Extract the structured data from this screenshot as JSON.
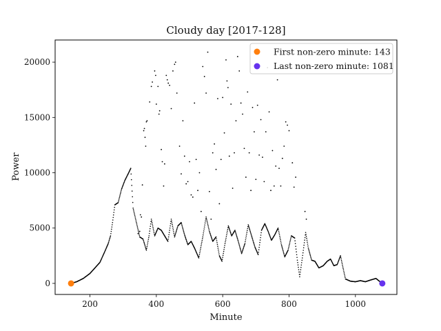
{
  "chart_data": {
    "type": "scatter",
    "title": "Cloudy day [2017-128]",
    "xlabel": "Minute",
    "ylabel": "Power",
    "xlim": [
      95,
      1125
    ],
    "ylim": [
      -1000,
      22000
    ],
    "xticks": [
      200,
      400,
      600,
      800,
      1000
    ],
    "yticks": [
      0,
      5000,
      10000,
      15000,
      20000
    ],
    "grid": false,
    "legend_position": "top-right",
    "series": [
      {
        "name": "power",
        "color": "#000000",
        "profile": [
          [
            143,
            0
          ],
          [
            160,
            150
          ],
          [
            180,
            450
          ],
          [
            200,
            900
          ],
          [
            215,
            1400
          ],
          [
            230,
            1900
          ],
          [
            245,
            2900
          ],
          [
            255,
            3600
          ],
          [
            262,
            4300
          ],
          [
            268,
            5500
          ],
          [
            275,
            7100
          ],
          [
            285,
            7300
          ],
          [
            295,
            8500
          ],
          [
            305,
            9300
          ],
          [
            315,
            9900
          ],
          [
            323,
            10400
          ],
          [
            330,
            6800
          ],
          [
            340,
            5500
          ],
          [
            350,
            4200
          ],
          [
            360,
            4000
          ],
          [
            370,
            3000
          ],
          [
            378,
            4300
          ],
          [
            385,
            5800
          ],
          [
            395,
            4300
          ],
          [
            405,
            5000
          ],
          [
            415,
            4800
          ],
          [
            425,
            4300
          ],
          [
            435,
            3800
          ],
          [
            445,
            5800
          ],
          [
            455,
            4200
          ],
          [
            465,
            5200
          ],
          [
            475,
            5500
          ],
          [
            485,
            4400
          ],
          [
            495,
            3500
          ],
          [
            505,
            3800
          ],
          [
            515,
            3200
          ],
          [
            528,
            2300
          ],
          [
            540,
            4200
          ],
          [
            550,
            6000
          ],
          [
            560,
            4700
          ],
          [
            570,
            3800
          ],
          [
            580,
            4200
          ],
          [
            590,
            2500
          ],
          [
            598,
            2000
          ],
          [
            607,
            3600
          ],
          [
            617,
            5200
          ],
          [
            627,
            4300
          ],
          [
            637,
            4800
          ],
          [
            647,
            3800
          ],
          [
            657,
            2700
          ],
          [
            667,
            3600
          ],
          [
            677,
            5300
          ],
          [
            687,
            4300
          ],
          [
            697,
            3300
          ],
          [
            707,
            2600
          ],
          [
            717,
            4800
          ],
          [
            727,
            5400
          ],
          [
            737,
            4700
          ],
          [
            747,
            3900
          ],
          [
            757,
            4400
          ],
          [
            767,
            5000
          ],
          [
            777,
            3500
          ],
          [
            787,
            2400
          ],
          [
            797,
            3000
          ],
          [
            807,
            4300
          ],
          [
            817,
            4100
          ],
          [
            825,
            2100
          ],
          [
            832,
            600
          ],
          [
            840,
            2300
          ],
          [
            850,
            4600
          ],
          [
            858,
            3200
          ],
          [
            868,
            2100
          ],
          [
            878,
            2000
          ],
          [
            890,
            1400
          ],
          [
            903,
            1600
          ],
          [
            915,
            2000
          ],
          [
            925,
            2200
          ],
          [
            935,
            1600
          ],
          [
            945,
            1700
          ],
          [
            955,
            2500
          ],
          [
            962,
            1500
          ],
          [
            970,
            400
          ],
          [
            985,
            200
          ],
          [
            1000,
            150
          ],
          [
            1015,
            250
          ],
          [
            1030,
            150
          ],
          [
            1045,
            300
          ],
          [
            1062,
            450
          ],
          [
            1070,
            250
          ],
          [
            1081,
            0
          ]
        ],
        "scatter": [
          [
            345,
            4500
          ],
          [
            350,
            4700
          ],
          [
            352,
            6200
          ],
          [
            355,
            6000
          ],
          [
            358,
            8900
          ],
          [
            362,
            13800
          ],
          [
            364,
            14000
          ],
          [
            366,
            13200
          ],
          [
            368,
            12400
          ],
          [
            370,
            14600
          ],
          [
            372,
            14700
          ],
          [
            380,
            16400
          ],
          [
            385,
            17800
          ],
          [
            388,
            18200
          ],
          [
            395,
            19200
          ],
          [
            398,
            18800
          ],
          [
            400,
            16200
          ],
          [
            405,
            17800
          ],
          [
            408,
            15300
          ],
          [
            410,
            15600
          ],
          [
            415,
            12100
          ],
          [
            418,
            11000
          ],
          [
            422,
            8800
          ],
          [
            425,
            10800
          ],
          [
            430,
            18800
          ],
          [
            433,
            18400
          ],
          [
            436,
            18100
          ],
          [
            440,
            17900
          ],
          [
            445,
            15800
          ],
          [
            450,
            19200
          ],
          [
            455,
            19800
          ],
          [
            458,
            20000
          ],
          [
            462,
            17200
          ],
          [
            470,
            12400
          ],
          [
            475,
            9900
          ],
          [
            480,
            14700
          ],
          [
            485,
            11500
          ],
          [
            490,
            9000
          ],
          [
            495,
            9200
          ],
          [
            500,
            11000
          ],
          [
            505,
            8000
          ],
          [
            510,
            7800
          ],
          [
            515,
            16300
          ],
          [
            520,
            11200
          ],
          [
            525,
            8400
          ],
          [
            530,
            10000
          ],
          [
            535,
            6500
          ],
          [
            540,
            19600
          ],
          [
            545,
            18700
          ],
          [
            550,
            17200
          ],
          [
            555,
            20900
          ],
          [
            560,
            8300
          ],
          [
            565,
            5800
          ],
          [
            570,
            11800
          ],
          [
            575,
            12600
          ],
          [
            580,
            10300
          ],
          [
            585,
            16700
          ],
          [
            590,
            7200
          ],
          [
            595,
            11200
          ],
          [
            600,
            16800
          ],
          [
            605,
            13600
          ],
          [
            610,
            20200
          ],
          [
            613,
            18300
          ],
          [
            616,
            17700
          ],
          [
            620,
            11500
          ],
          [
            625,
            16200
          ],
          [
            630,
            8600
          ],
          [
            635,
            11800
          ],
          [
            640,
            14700
          ],
          [
            645,
            20500
          ],
          [
            650,
            19200
          ],
          [
            655,
            16300
          ],
          [
            660,
            15300
          ],
          [
            665,
            12200
          ],
          [
            670,
            9600
          ],
          [
            675,
            17300
          ],
          [
            680,
            11800
          ],
          [
            685,
            8400
          ],
          [
            690,
            15900
          ],
          [
            695,
            13700
          ],
          [
            700,
            9400
          ],
          [
            705,
            16100
          ],
          [
            710,
            11600
          ],
          [
            715,
            14800
          ],
          [
            720,
            11400
          ],
          [
            725,
            9200
          ],
          [
            730,
            13700
          ],
          [
            735,
            19500
          ],
          [
            740,
            15500
          ],
          [
            745,
            8400
          ],
          [
            750,
            12000
          ],
          [
            755,
            8800
          ],
          [
            760,
            10600
          ],
          [
            765,
            18400
          ],
          [
            770,
            10400
          ],
          [
            775,
            8800
          ],
          [
            780,
            11300
          ],
          [
            785,
            12400
          ],
          [
            790,
            14600
          ],
          [
            795,
            14300
          ],
          [
            800,
            13800
          ],
          [
            810,
            10900
          ],
          [
            815,
            8700
          ],
          [
            820,
            9600
          ],
          [
            848,
            6500
          ],
          [
            852,
            5800
          ]
        ]
      }
    ],
    "highlights": [
      {
        "label": "First non-zero minute: 143",
        "x": 143,
        "y": 0,
        "color": "#ff7f0e"
      },
      {
        "label": "Last non-zero minute: 1081",
        "x": 1081,
        "y": 0,
        "color": "#6633ee"
      }
    ]
  }
}
